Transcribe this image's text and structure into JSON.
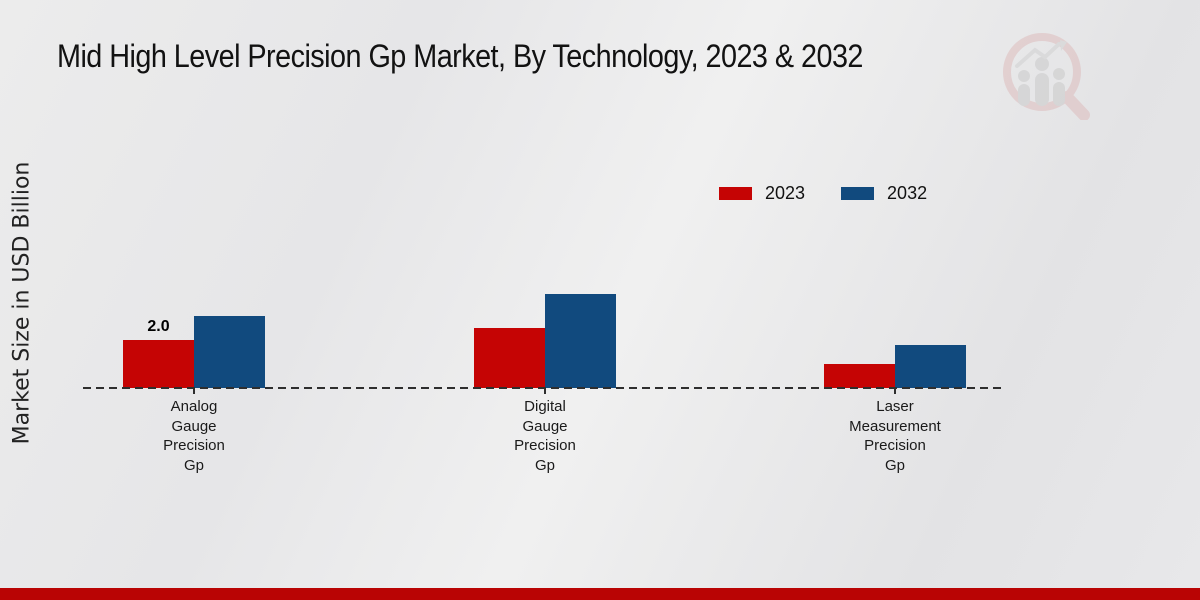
{
  "title": "Mid High Level Precision Gp Market, By Technology, 2023 & 2032",
  "y_axis_label": "Market Size in USD Billion",
  "legend": [
    {
      "label": "2023",
      "color": "#c50404"
    },
    {
      "label": "2032",
      "color": "#114a7e"
    }
  ],
  "chart_data": {
    "type": "bar",
    "title": "Mid High Level Precision Gp Market, By Technology, 2023 & 2032",
    "ylabel": "Market Size in USD Billion",
    "xlabel": "",
    "categories": [
      "Analog Gauge Precision Gp",
      "Digital Gauge Precision Gp",
      "Laser Measurement Precision Gp"
    ],
    "series": [
      {
        "name": "2023",
        "color": "#c50404",
        "values": [
          2.0,
          2.5,
          1.0
        ]
      },
      {
        "name": "2032",
        "color": "#114a7e",
        "values": [
          3.0,
          3.9,
          1.8
        ]
      }
    ],
    "data_labels": [
      {
        "series_index": 0,
        "category_index": 0,
        "text": "2.0"
      }
    ],
    "units": "USD Billion",
    "ylim": [
      0,
      4.5
    ],
    "grid": false,
    "legend_position": "upper right",
    "axis_style": "dashed black baseline with category ticks, no y-axis line"
  },
  "footer": {
    "bar_color": "#b90404"
  },
  "icons": {
    "watermark": "magnifier-bar-chart-logo"
  }
}
